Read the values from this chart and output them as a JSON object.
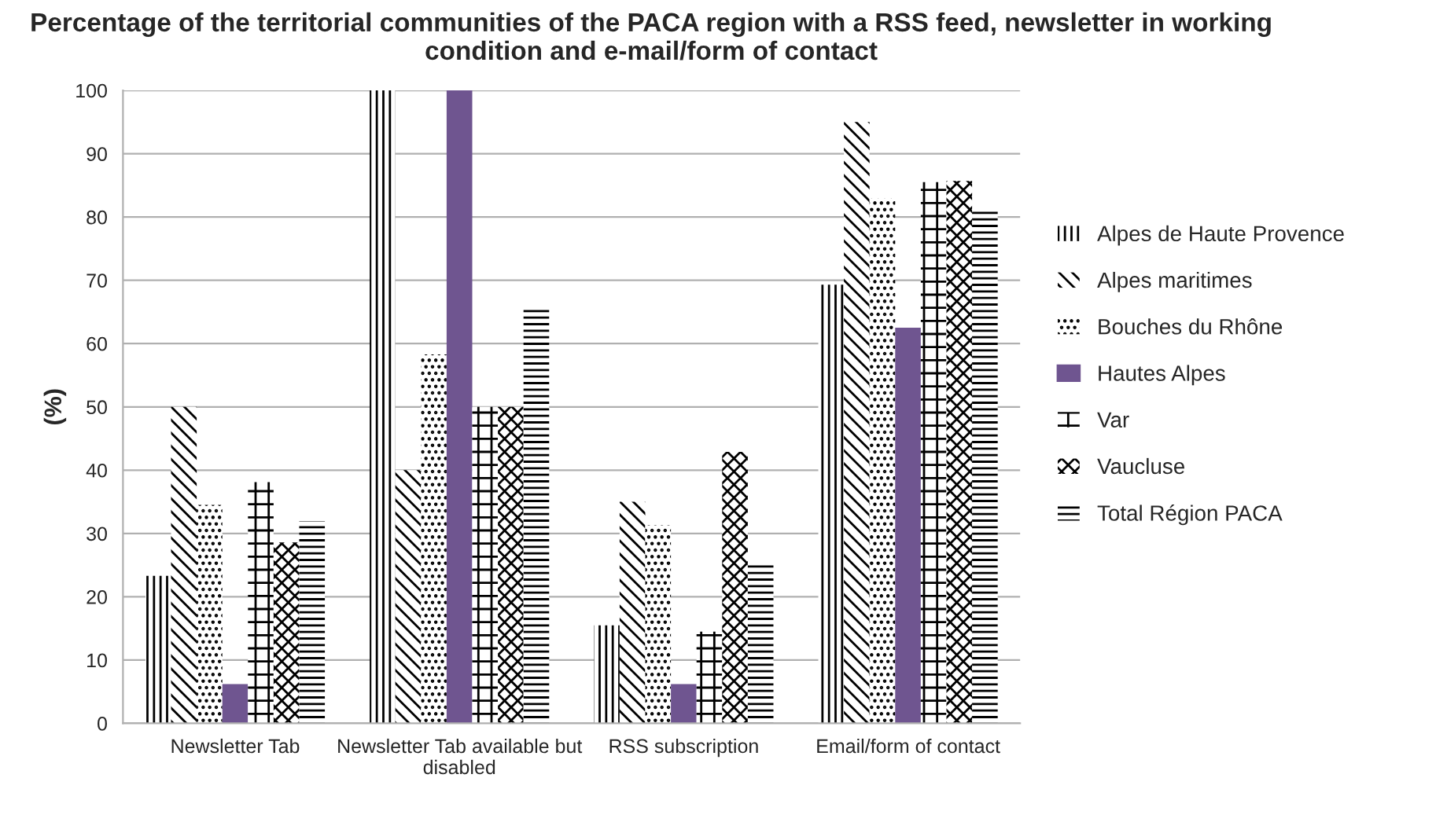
{
  "chart_data": {
    "type": "bar",
    "title": "Percentage of the territorial communities of the PACA region with a RSS feed, newsletter in working condition and e-mail/form of contact",
    "ylabel": "(%)",
    "categories": [
      "Newsletter Tab",
      "Newsletter Tab available but disabled",
      "RSS subscription",
      "Email/form of contact"
    ],
    "series": [
      {
        "name": "Alpes de Haute Provence",
        "color": "#000000",
        "values": [
          23.3,
          100,
          15.5,
          69.3
        ]
      },
      {
        "name": "Alpes maritimes",
        "color": "#000000",
        "values": [
          50,
          40,
          35,
          95
        ]
      },
      {
        "name": "Bouches du Rhône",
        "color": "#000000",
        "values": [
          34.5,
          58.3,
          31.3,
          83
        ]
      },
      {
        "name": "Hautes Alpes",
        "color": "#6f5590",
        "values": [
          6.2,
          100,
          6.2,
          62.5
        ]
      },
      {
        "name": "Var",
        "color": "#000000",
        "values": [
          38.1,
          50,
          14.5,
          85.5
        ]
      },
      {
        "name": "Vaucluse",
        "color": "#000000",
        "values": [
          28.6,
          50,
          42.9,
          85.7
        ]
      },
      {
        "name": "Total Région PACA",
        "color": "#000000",
        "values": [
          31.9,
          65.5,
          25.3,
          81.3
        ]
      }
    ],
    "ylim": [
      0,
      100
    ],
    "yticks": [
      0,
      10,
      20,
      30,
      40,
      50,
      60,
      70,
      80,
      90,
      100
    ],
    "grid": "y",
    "legend": "right"
  }
}
